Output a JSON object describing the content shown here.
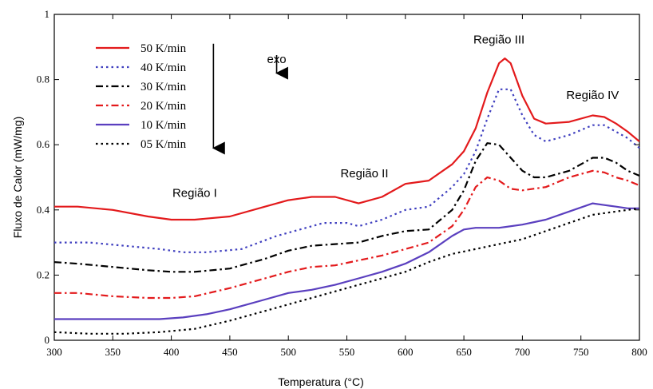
{
  "chart_data": {
    "type": "line",
    "xlabel": "Temperatura (°C)",
    "ylabel": "Fluxo de Calor (mW/mg)",
    "xlim": [
      300,
      800
    ],
    "ylim": [
      0,
      1
    ],
    "xticks": [
      "300",
      "350",
      "400",
      "450",
      "500",
      "550",
      "600",
      "650",
      "700",
      "750",
      "800"
    ],
    "yticks": [
      "0",
      "0.2",
      "0.4",
      "0.6",
      "0.8",
      "1"
    ],
    "grid": false,
    "legend_position": "top-left",
    "annotations": [
      {
        "text": "Região I",
        "x": 420,
        "y": 0.44
      },
      {
        "text": "Região II",
        "x": 565,
        "y": 0.5
      },
      {
        "text": "Região III",
        "x": 680,
        "y": 0.91
      },
      {
        "text": "Região IV",
        "x": 760,
        "y": 0.74
      },
      {
        "text": "exo",
        "x": 490,
        "y": 0.85
      }
    ],
    "exo_arrows": [
      {
        "x": 490,
        "y_from": 0.875,
        "y_to": 0.8
      },
      {
        "x": 436,
        "y_from": 0.91,
        "y_to": 0.57
      }
    ],
    "series": [
      {
        "name": "50 K/min",
        "color": "#e31a1c",
        "dash": "solid",
        "x": [
          300,
          320,
          350,
          380,
          400,
          420,
          450,
          480,
          500,
          520,
          540,
          560,
          580,
          600,
          620,
          640,
          650,
          660,
          670,
          680,
          685,
          690,
          700,
          710,
          720,
          740,
          760,
          770,
          780,
          790,
          800
        ],
        "y": [
          0.41,
          0.41,
          0.4,
          0.38,
          0.37,
          0.37,
          0.38,
          0.41,
          0.43,
          0.44,
          0.44,
          0.42,
          0.44,
          0.48,
          0.49,
          0.54,
          0.58,
          0.65,
          0.76,
          0.85,
          0.865,
          0.85,
          0.75,
          0.68,
          0.665,
          0.67,
          0.69,
          0.685,
          0.665,
          0.64,
          0.61
        ]
      },
      {
        "name": "40 K/min",
        "color": "#3f3fbf",
        "dash": "dot",
        "x": [
          300,
          330,
          360,
          390,
          410,
          430,
          460,
          490,
          510,
          530,
          550,
          560,
          580,
          600,
          620,
          640,
          650,
          660,
          670,
          680,
          690,
          700,
          710,
          720,
          740,
          760,
          770,
          780,
          790,
          800
        ],
        "y": [
          0.3,
          0.3,
          0.29,
          0.28,
          0.27,
          0.27,
          0.28,
          0.32,
          0.34,
          0.36,
          0.36,
          0.35,
          0.37,
          0.4,
          0.41,
          0.47,
          0.51,
          0.58,
          0.68,
          0.77,
          0.77,
          0.69,
          0.63,
          0.61,
          0.63,
          0.66,
          0.66,
          0.64,
          0.62,
          0.59
        ]
      },
      {
        "name": "30 K/min",
        "color": "#000000",
        "dash": "dashdot",
        "x": [
          300,
          320,
          350,
          380,
          400,
          420,
          450,
          480,
          500,
          520,
          540,
          560,
          580,
          600,
          620,
          640,
          650,
          660,
          670,
          680,
          690,
          700,
          710,
          720,
          740,
          760,
          770,
          780,
          790,
          800
        ],
        "y": [
          0.24,
          0.235,
          0.225,
          0.215,
          0.21,
          0.21,
          0.22,
          0.25,
          0.275,
          0.29,
          0.295,
          0.3,
          0.32,
          0.335,
          0.34,
          0.4,
          0.46,
          0.55,
          0.605,
          0.6,
          0.56,
          0.52,
          0.5,
          0.5,
          0.52,
          0.56,
          0.56,
          0.545,
          0.52,
          0.505
        ]
      },
      {
        "name": "20 K/min",
        "color": "#e31a1c",
        "dash": "dashdot",
        "x": [
          300,
          320,
          350,
          380,
          400,
          420,
          450,
          480,
          500,
          520,
          540,
          560,
          580,
          600,
          620,
          640,
          650,
          660,
          670,
          680,
          690,
          700,
          720,
          740,
          760,
          770,
          780,
          790,
          800
        ],
        "y": [
          0.145,
          0.145,
          0.135,
          0.13,
          0.13,
          0.135,
          0.16,
          0.19,
          0.21,
          0.225,
          0.23,
          0.245,
          0.26,
          0.28,
          0.3,
          0.35,
          0.4,
          0.47,
          0.5,
          0.49,
          0.465,
          0.46,
          0.47,
          0.5,
          0.52,
          0.515,
          0.5,
          0.49,
          0.475
        ]
      },
      {
        "name": "10 K/min",
        "color": "#5a3fbf",
        "dash": "solid",
        "x": [
          300,
          330,
          360,
          390,
          410,
          430,
          450,
          480,
          500,
          520,
          540,
          560,
          580,
          600,
          620,
          640,
          650,
          660,
          680,
          700,
          720,
          740,
          760,
          770,
          780,
          790,
          800
        ],
        "y": [
          0.065,
          0.065,
          0.065,
          0.065,
          0.07,
          0.08,
          0.095,
          0.125,
          0.145,
          0.155,
          0.17,
          0.19,
          0.21,
          0.235,
          0.27,
          0.32,
          0.34,
          0.345,
          0.345,
          0.355,
          0.37,
          0.395,
          0.42,
          0.415,
          0.41,
          0.405,
          0.405
        ]
      },
      {
        "name": "05 K/min",
        "color": "#000000",
        "dash": "dot",
        "x": [
          300,
          330,
          360,
          390,
          420,
          450,
          480,
          500,
          520,
          540,
          560,
          580,
          600,
          620,
          640,
          660,
          680,
          700,
          720,
          740,
          760,
          780,
          800
        ],
        "y": [
          0.025,
          0.02,
          0.02,
          0.025,
          0.035,
          0.06,
          0.09,
          0.11,
          0.13,
          0.15,
          0.17,
          0.19,
          0.21,
          0.24,
          0.265,
          0.28,
          0.295,
          0.31,
          0.335,
          0.36,
          0.385,
          0.395,
          0.405
        ]
      }
    ]
  }
}
